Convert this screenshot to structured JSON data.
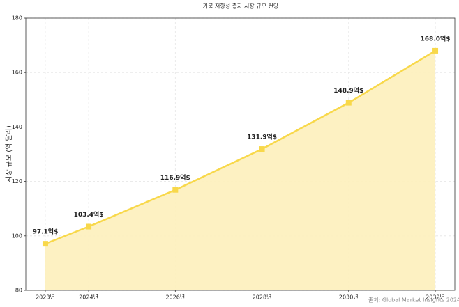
{
  "chart_data": {
    "type": "line",
    "title": "가뭄 저항성 종자 시장 규모 전망",
    "y_label": "시장 규모 (억 달러)",
    "annotation": "출처: Global Market Insights 2024",
    "x": [
      2023,
      2024,
      2026,
      2028,
      2030,
      2032
    ],
    "series": [
      {
        "color": "#f8d84a",
        "fill": "#fdf0bb",
        "values": [
          97.1,
          103.4,
          116.9,
          131.9,
          148.9,
          168.0
        ],
        "value_labels": [
          "97.1억$",
          "103.4억$",
          "116.9억$",
          "131.9억$",
          "148.9억$",
          "168.0억$"
        ]
      }
    ],
    "xlim": [
      2022.55,
      2032.45
    ],
    "xticks": [
      {
        "value": 2023,
        "label": "2023년"
      },
      {
        "value": 2024,
        "label": "2024년"
      },
      {
        "value": 2026,
        "label": "2026년"
      },
      {
        "value": 2028,
        "label": "2028년"
      },
      {
        "value": 2030,
        "label": "2030년"
      },
      {
        "value": 2032,
        "label": "2032년"
      }
    ],
    "ylim": [
      80,
      180
    ],
    "yticks": [
      80,
      100,
      120,
      140,
      160,
      180
    ],
    "grid": true
  }
}
